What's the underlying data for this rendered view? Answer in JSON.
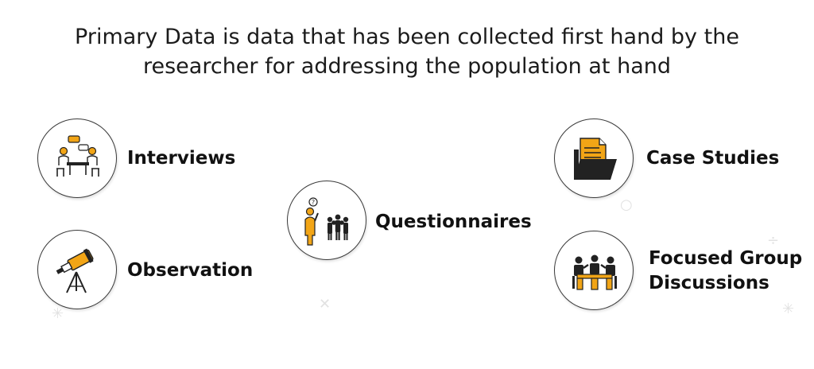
{
  "title": {
    "line1": "Primary Data is data that has been collected first hand by the",
    "line2": "researcher for addressing the population at hand"
  },
  "items": [
    {
      "label": "Interviews",
      "icon": "interview-meeting-icon"
    },
    {
      "label": "Observation",
      "icon": "telescope-icon"
    },
    {
      "label": "Questionnaires",
      "icon": "questioning-crowd-icon"
    },
    {
      "label": "Case Studies",
      "icon": "document-folder-icon"
    },
    {
      "label_line1": "Focused Group",
      "label_line2": "Discussions",
      "icon": "group-discussion-icon"
    }
  ],
  "colors": {
    "accent": "#F2A516",
    "dark": "#222222",
    "ring": "#3a3a3a"
  }
}
